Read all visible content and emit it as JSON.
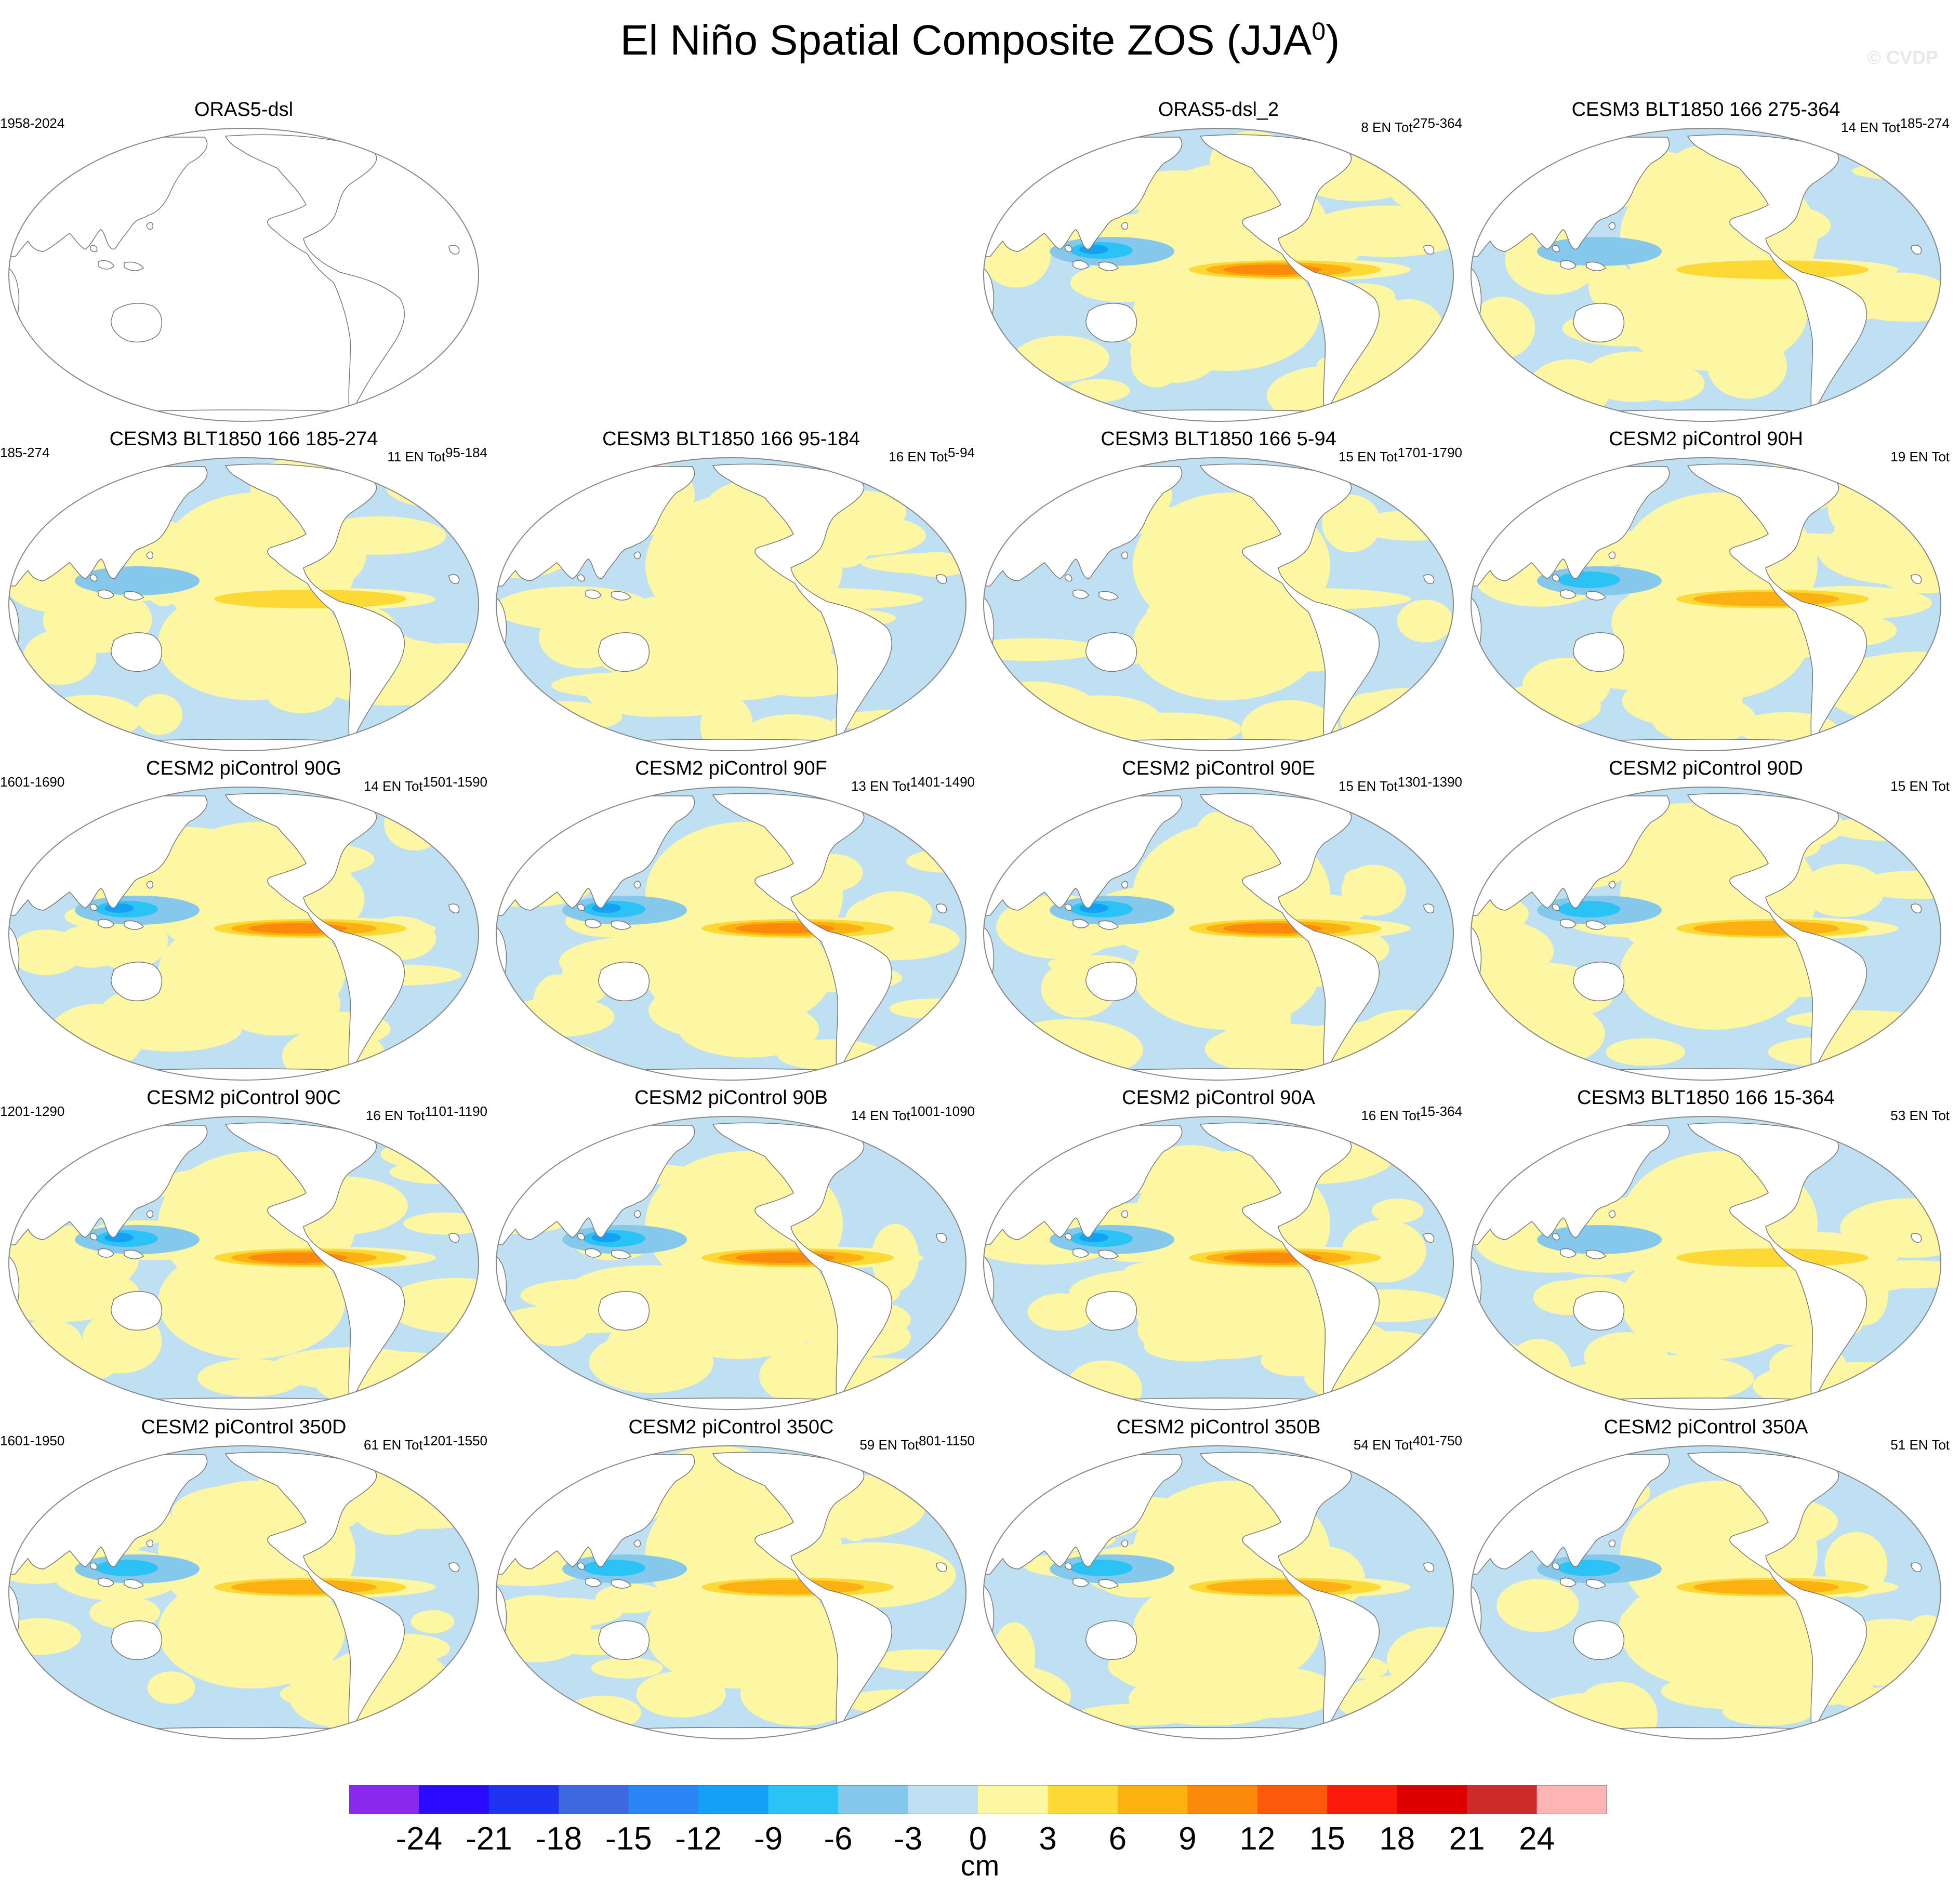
{
  "title": "El Niño Spatial Composite ZOS (JJA",
  "title_superscript": "0",
  "title_close": ")",
  "watermark": "© CVDP",
  "units": "cm",
  "colors": {
    "ocean_neg3_0": "#bfe0f2",
    "ocean_0_3": "#fdf6a3",
    "land": "#ffffff",
    "coast": "#777777"
  },
  "chart_data": {
    "type": "heatmap",
    "projection": "Robinson, Pacific-centered",
    "colorbar": {
      "levels": [
        -24,
        -21,
        -18,
        -15,
        -12,
        -9,
        -6,
        -3,
        0,
        3,
        6,
        9,
        12,
        15,
        18,
        21,
        24
      ],
      "labels": [
        "-24",
        "-21",
        "-18",
        "-15",
        "-12",
        "-9",
        "-6",
        "-3",
        "0",
        "3",
        "6",
        "9",
        "12",
        "15",
        "18",
        "21",
        "24"
      ],
      "colors": [
        "#8b28f0",
        "#2b0bff",
        "#2033f0",
        "#3e68e0",
        "#2b86f5",
        "#14a0f5",
        "#2bc2f6",
        "#86c8ec",
        "#bfe0f2",
        "#fdf6a3",
        "#fcd935",
        "#fcb012",
        "#fb8a0b",
        "#fb5a0b",
        "#fb1a0b",
        "#dd0000",
        "#cd2a2a",
        "#fdb4b4"
      ]
    },
    "panels": [
      {
        "title": "ORAS5-dsl",
        "left": "1958-2024",
        "right": "",
        "right_sup": "",
        "filled": false,
        "peak": 0
      },
      {
        "title": "ORAS5-dsl_2",
        "left": "",
        "right": "8 EN Tot",
        "right_sup": "275-364",
        "filled": true,
        "peak": 12
      },
      {
        "title": "CESM3 BLT1850 166 275-364",
        "left": "",
        "right": "14 EN Tot",
        "right_sup": "185-274",
        "filled": true,
        "peak": 6
      },
      {
        "title": "CESM3 BLT1850 166 185-274",
        "left": "185-274",
        "right": "11 EN Tot",
        "right_sup": "95-184",
        "filled": true,
        "peak": 6
      },
      {
        "title": "CESM3 BLT1850 166 95-184",
        "left": "",
        "right": "16 EN Tot",
        "right_sup": "5-94",
        "filled": true,
        "peak": 3
      },
      {
        "title": "CESM3 BLT1850 166 5-94",
        "left": "",
        "right": "15 EN Tot",
        "right_sup": "1701-1790",
        "filled": true,
        "peak": 3
      },
      {
        "title": "CESM2 piControl 90H",
        "left": "",
        "right": "19 EN Tot",
        "right_sup": "",
        "filled": true,
        "peak": 9
      },
      {
        "title": "CESM2 piControl 90G",
        "left": "1601-1690",
        "right": "14 EN Tot",
        "right_sup": "1501-1590",
        "filled": true,
        "peak": 12
      },
      {
        "title": "CESM2 piControl 90F",
        "left": "",
        "right": "13 EN Tot",
        "right_sup": "1401-1490",
        "filled": true,
        "peak": 12
      },
      {
        "title": "CESM2 piControl 90E",
        "left": "",
        "right": "15 EN Tot",
        "right_sup": "1301-1390",
        "filled": true,
        "peak": 12
      },
      {
        "title": "CESM2 piControl 90D",
        "left": "",
        "right": "15 EN Tot",
        "right_sup": "",
        "filled": true,
        "peak": 9
      },
      {
        "title": "CESM2 piControl 90C",
        "left": "1201-1290",
        "right": "16 EN Tot",
        "right_sup": "1101-1190",
        "filled": true,
        "peak": 12
      },
      {
        "title": "CESM2 piControl 90B",
        "left": "",
        "right": "14 EN Tot",
        "right_sup": "1001-1090",
        "filled": true,
        "peak": 12
      },
      {
        "title": "CESM2 piControl 90A",
        "left": "",
        "right": "16 EN Tot",
        "right_sup": "15-364",
        "filled": true,
        "peak": 12
      },
      {
        "title": "CESM3 BLT1850 166 15-364",
        "left": "",
        "right": "53 EN Tot",
        "right_sup": "",
        "filled": true,
        "peak": 6
      },
      {
        "title": "CESM2 piControl 350D",
        "left": "1601-1950",
        "right": "61 EN Tot",
        "right_sup": "1201-1550",
        "filled": true,
        "peak": 9
      },
      {
        "title": "CESM2 piControl 350C",
        "left": "",
        "right": "59 EN Tot",
        "right_sup": "801-1150",
        "filled": true,
        "peak": 9
      },
      {
        "title": "CESM2 piControl 350B",
        "left": "",
        "right": "54 EN Tot",
        "right_sup": "401-750",
        "filled": true,
        "peak": 9
      },
      {
        "title": "CESM2 piControl 350A",
        "left": "",
        "right": "51 EN Tot",
        "right_sup": "",
        "filled": true,
        "peak": 9
      }
    ]
  }
}
